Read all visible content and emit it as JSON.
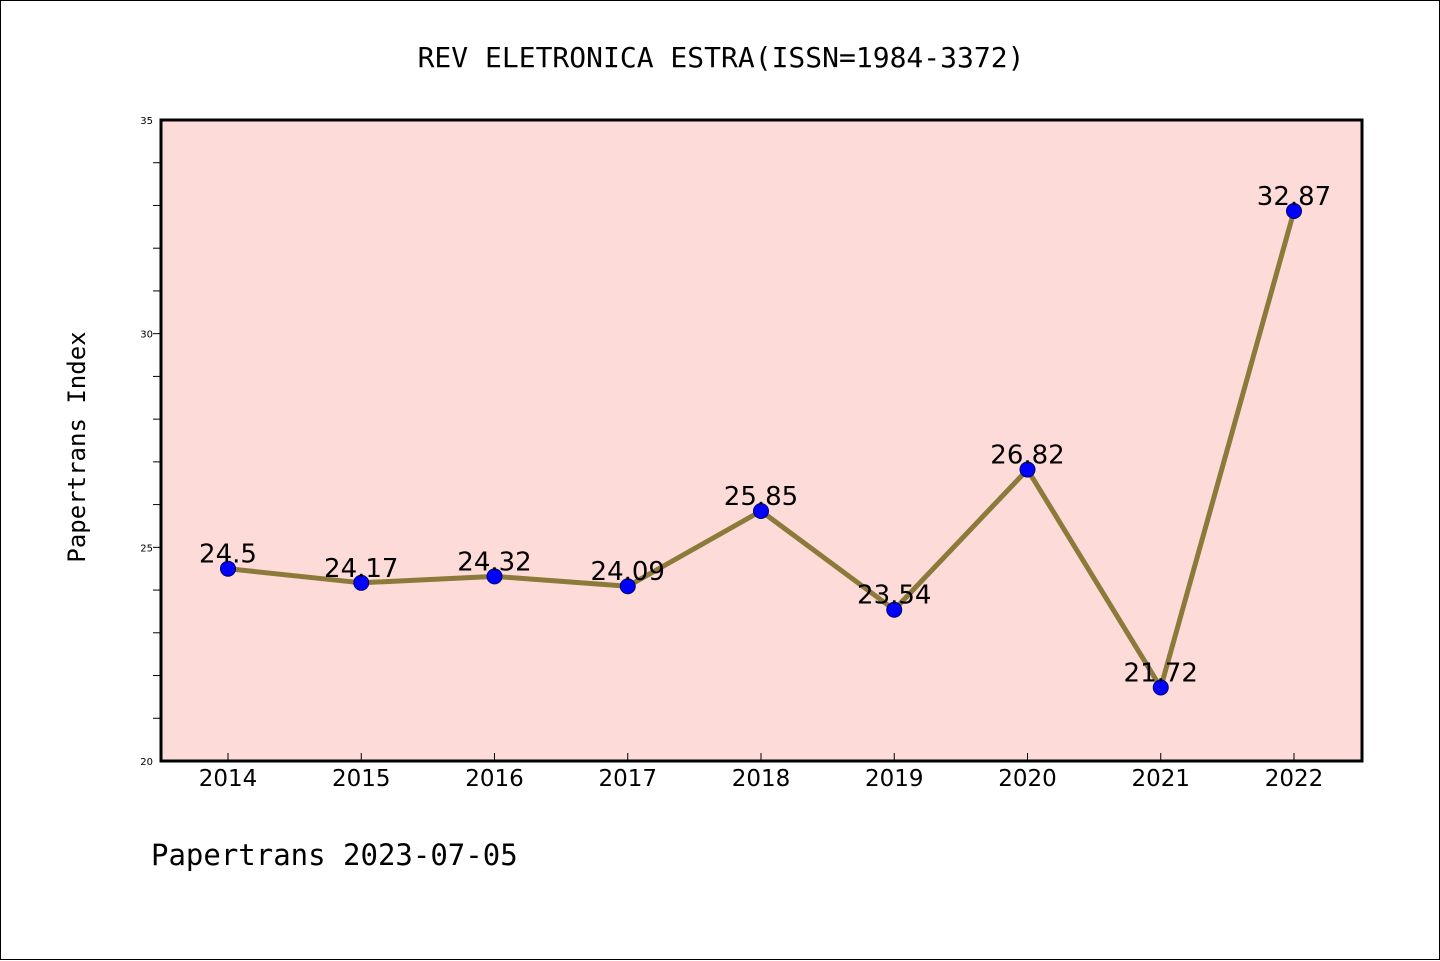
{
  "title": "REV ELETRONICA ESTRA(ISSN=1984-3372)",
  "ylabel": "Papertrans Index",
  "footer": "Papertrans 2023-07-05",
  "colors": {
    "plot_background": "#fddbd8",
    "line": "#8b7a3a",
    "marker": "#0000ff",
    "frame": "#000000"
  },
  "chart_data": {
    "type": "line",
    "title": "REV ELETRONICA ESTRA(ISSN=1984-3372)",
    "xlabel": "",
    "ylabel": "Papertrans Index",
    "categories": [
      "2014",
      "2015",
      "2016",
      "2017",
      "2018",
      "2019",
      "2020",
      "2021",
      "2022"
    ],
    "values": [
      24.5,
      24.17,
      24.32,
      24.09,
      25.85,
      23.54,
      26.82,
      21.72,
      32.87
    ],
    "value_labels": [
      "24.5",
      "24.17",
      "24.32",
      "24.09",
      "25.85",
      "23.54",
      "26.82",
      "21.72",
      "32.87"
    ],
    "ylim": [
      20,
      35
    ],
    "yticks": [
      "20",
      "25",
      "30",
      "35"
    ],
    "grid": false,
    "legend": "none"
  }
}
